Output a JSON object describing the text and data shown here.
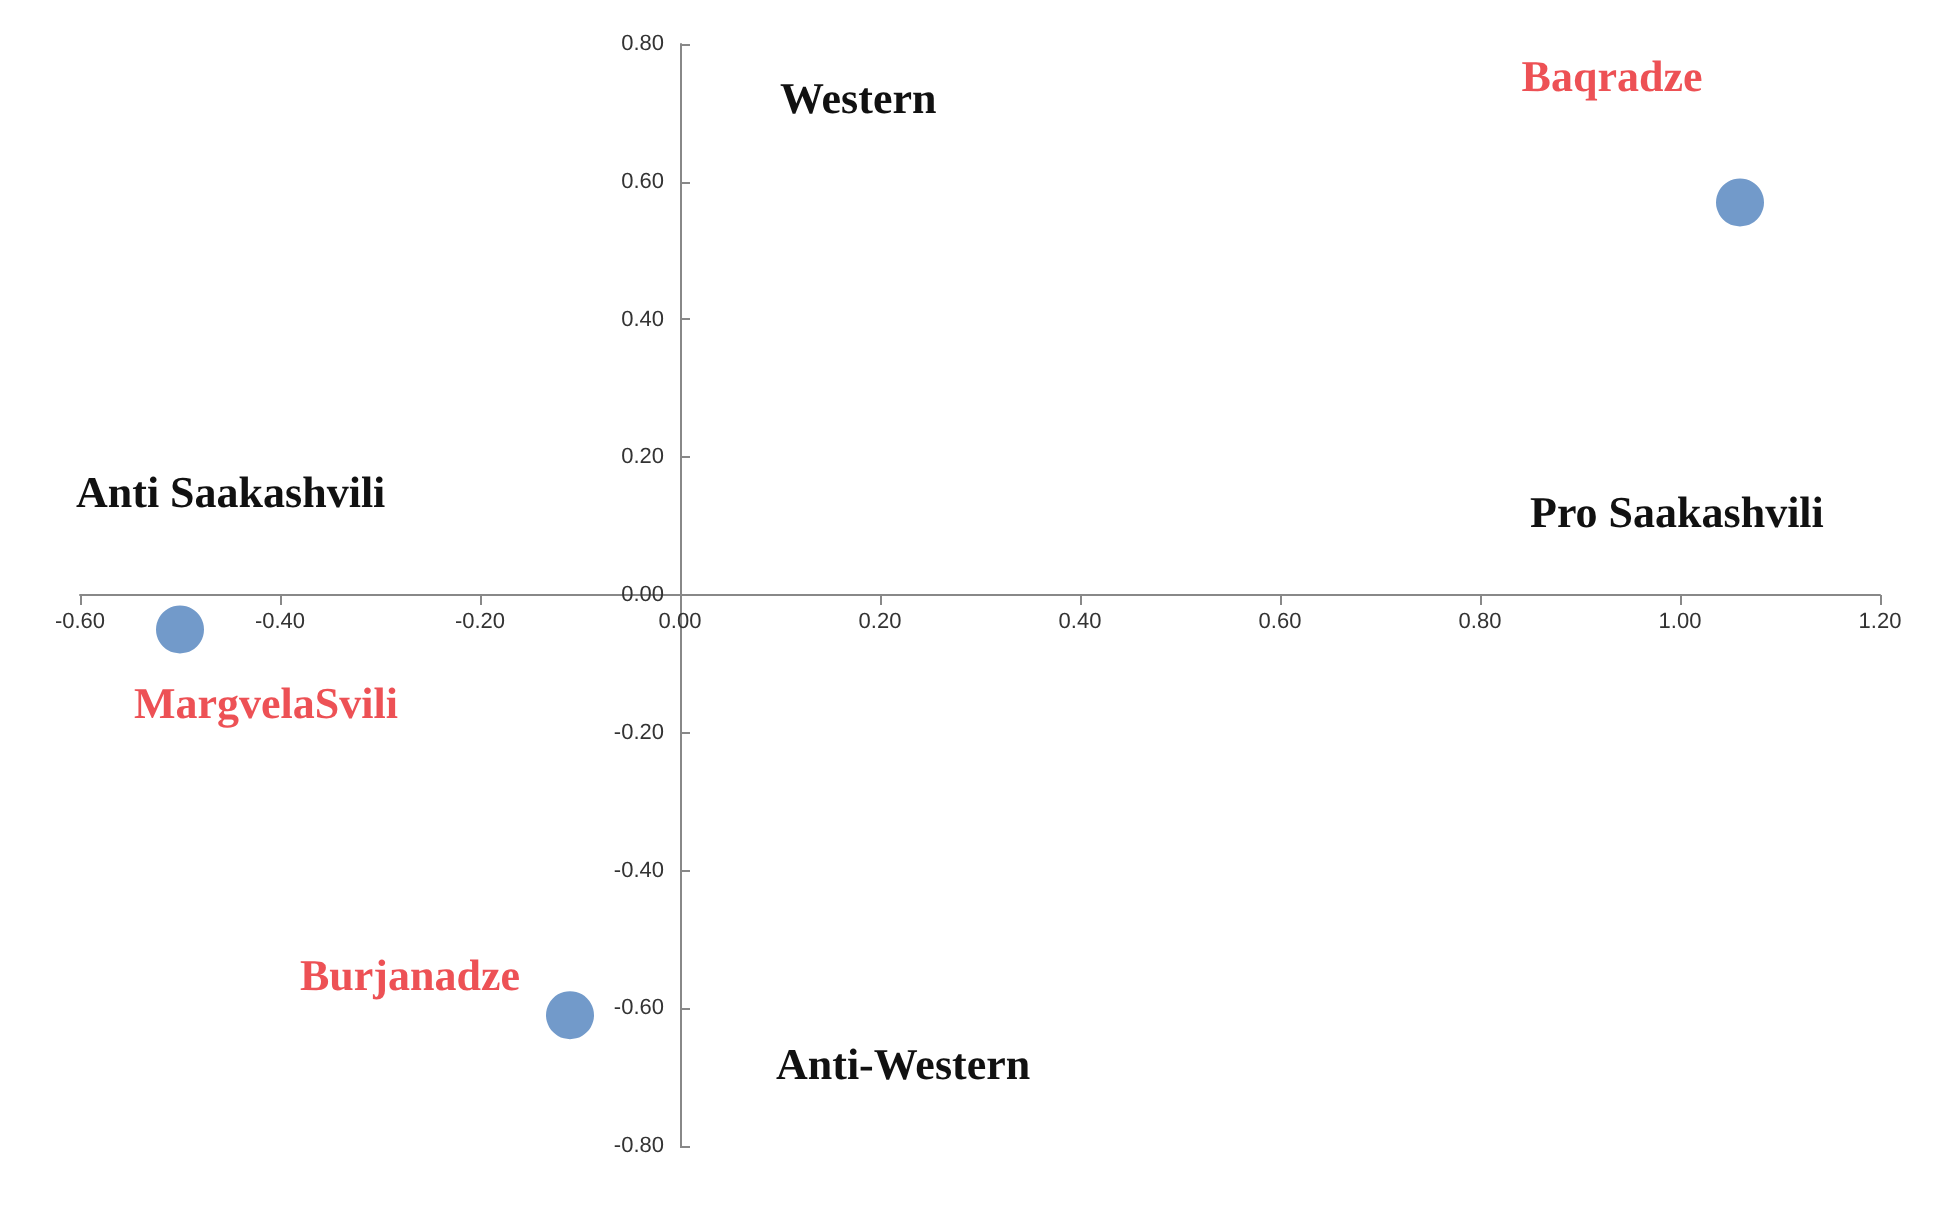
{
  "chart_data": {
    "type": "scatter",
    "annotations": [
      "Western",
      "Anti Saakashvili",
      "Pro Saakashvili",
      "Anti-Western"
    ],
    "series": [
      {
        "name": "Baqradze",
        "color": "#4f81bd",
        "x": [
          1.06
        ],
        "values": [
          0.57
        ]
      },
      {
        "name": "MargvelaSvili",
        "color": "#4f81bd",
        "x": [
          -0.5
        ],
        "values": [
          -0.05
        ]
      },
      {
        "name": "Burjanadze",
        "color": "#4f81bd",
        "x": [
          -0.11
        ],
        "values": [
          -0.61
        ]
      }
    ],
    "xlim": [
      -0.6,
      1.2
    ],
    "xticks": [
      {
        "value": -0.6,
        "label": "-0.60"
      },
      {
        "value": -0.4,
        "label": "-0.40"
      },
      {
        "value": -0.2,
        "label": "-0.20"
      },
      {
        "value": 0,
        "label": "0.00"
      },
      {
        "value": 0.2,
        "label": "0.20"
      },
      {
        "value": 0.4,
        "label": "0.40"
      },
      {
        "value": 0.6,
        "label": "0.60"
      },
      {
        "value": 0.8,
        "label": "0.80"
      },
      {
        "value": 1,
        "label": "1.00"
      },
      {
        "value": 1.2,
        "label": "1.20"
      }
    ],
    "ylim": [
      -0.8,
      0.8
    ],
    "yticks": [
      {
        "value": -0.8,
        "label": "-0.80"
      },
      {
        "value": -0.6,
        "label": "-0.60"
      },
      {
        "value": -0.4,
        "label": "-0.40"
      },
      {
        "value": -0.2,
        "label": "-0.20"
      },
      {
        "value": 0,
        "label": "0.00"
      },
      {
        "value": 0.2,
        "label": "0.20"
      },
      {
        "value": 0.4,
        "label": "0.40"
      },
      {
        "value": 0.6,
        "label": "0.60"
      },
      {
        "value": 0.8,
        "label": "0.80"
      }
    ],
    "grid": false,
    "legend": false,
    "marker": "circle"
  }
}
